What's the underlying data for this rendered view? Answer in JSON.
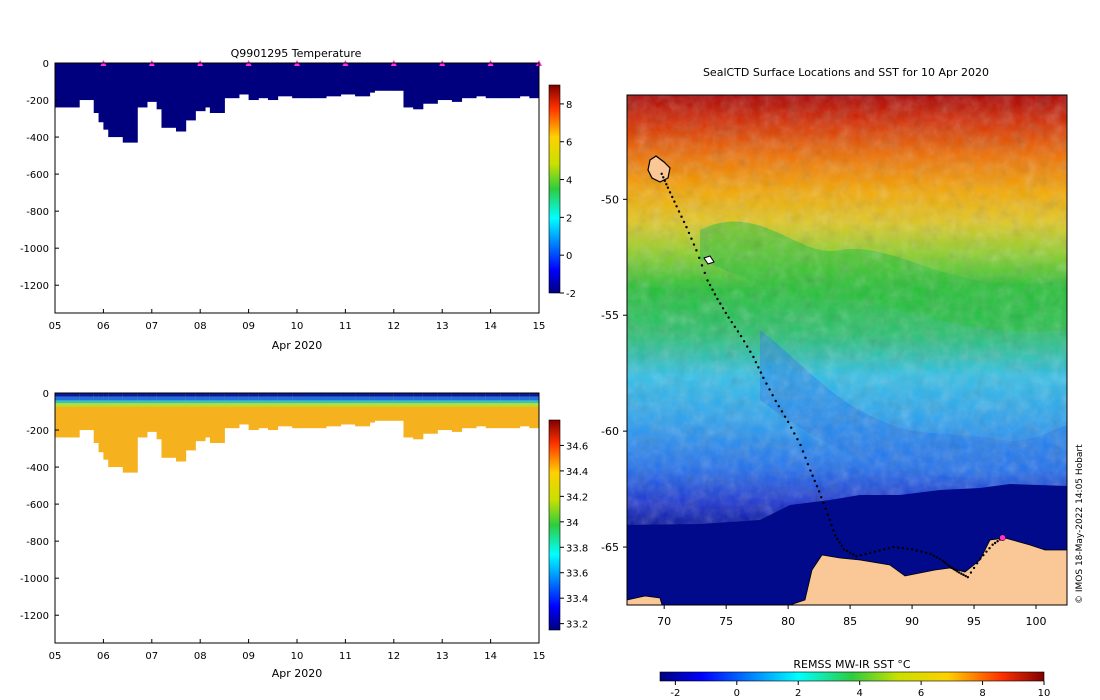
{
  "chart_data": [
    {
      "type": "heatmap",
      "id": "temperature-section",
      "title": "Q9901295  Temperature",
      "xlabel": "Apr 2020",
      "x_ticks": [
        "05",
        "06",
        "07",
        "08",
        "09",
        "10",
        "11",
        "12",
        "13",
        "14",
        "15"
      ],
      "xlim": [
        5,
        15
      ],
      "y_ticks": [
        "0",
        "-200",
        "-400",
        "-600",
        "-800",
        "-1000",
        "-1200"
      ],
      "y_tick_values": [
        0,
        -200,
        -400,
        -600,
        -800,
        -1000,
        -1200
      ],
      "ylim": [
        -1350,
        0
      ],
      "colorbar": {
        "ticks": [
          "8",
          "6",
          "4",
          "2",
          "0",
          "-2"
        ],
        "tick_values": [
          8,
          6,
          4,
          2,
          0,
          -2
        ],
        "range": [
          -2,
          9
        ]
      },
      "profile_times": [
        5.0,
        5.5,
        5.8,
        5.9,
        6.0,
        6.1,
        6.4,
        6.7,
        6.9,
        7.1,
        7.2,
        7.5,
        7.7,
        7.9,
        8.1,
        8.2,
        8.5,
        8.8,
        9.0,
        9.2,
        9.4,
        9.6,
        9.9,
        10.3,
        10.6,
        10.9,
        11.2,
        11.5,
        11.6,
        12.0,
        12.2,
        12.4,
        12.6,
        12.9,
        13.2,
        13.4,
        13.7,
        13.9,
        14.2,
        14.6,
        14.8
      ],
      "profile_depths": [
        240,
        200,
        270,
        320,
        360,
        400,
        430,
        240,
        210,
        250,
        350,
        370,
        310,
        260,
        240,
        270,
        190,
        170,
        200,
        190,
        200,
        180,
        190,
        190,
        180,
        170,
        180,
        160,
        150,
        150,
        240,
        250,
        220,
        200,
        210,
        190,
        180,
        190,
        190,
        180,
        190
      ],
      "temperature_range_observed": [
        -2,
        -1
      ],
      "profile_markers": [
        6,
        7,
        8,
        9,
        10,
        11,
        12,
        13,
        14,
        15
      ]
    },
    {
      "type": "heatmap",
      "id": "salinity-section",
      "title": "",
      "xlabel": "Apr 2020",
      "x_ticks": [
        "05",
        "06",
        "07",
        "08",
        "09",
        "10",
        "11",
        "12",
        "13",
        "14",
        "15"
      ],
      "xlim": [
        5,
        15
      ],
      "y_ticks": [
        "0",
        "-200",
        "-400",
        "-600",
        "-800",
        "-1000",
        "-1200"
      ],
      "y_tick_values": [
        0,
        -200,
        -400,
        -600,
        -800,
        -1000,
        -1200
      ],
      "ylim": [
        -1350,
        0
      ],
      "colorbar": {
        "ticks": [
          "34.6",
          "34.4",
          "34.2",
          "34",
          "33.8",
          "33.6",
          "33.4",
          "33.2"
        ],
        "tick_values": [
          34.6,
          34.4,
          34.2,
          34.0,
          33.8,
          33.6,
          33.4,
          33.2
        ],
        "range": [
          33.15,
          34.8
        ]
      },
      "salinity_layers": [
        {
          "from_depth": 0,
          "to_depth": 20,
          "salinity": 33.35
        },
        {
          "from_depth": 20,
          "to_depth": 40,
          "salinity": 33.6
        },
        {
          "from_depth": 40,
          "to_depth": 55,
          "salinity": 33.95
        },
        {
          "from_depth": 55,
          "to_depth": 75,
          "salinity": 34.25
        },
        {
          "from_depth": 75,
          "to_depth": 9999,
          "salinity": 34.32
        }
      ]
    },
    {
      "type": "heatmap",
      "id": "sst-map",
      "title": "SealCTD Surface Locations and SST for 10 Apr 2020",
      "xlim": [
        67,
        102.5
      ],
      "ylim": [
        -67.5,
        -45.5
      ],
      "x_ticks": [
        "70",
        "75",
        "80",
        "85",
        "90",
        "95",
        "100"
      ],
      "x_tick_values": [
        70,
        75,
        80,
        85,
        90,
        95,
        100
      ],
      "y_ticks": [
        "-50",
        "-55",
        "-60",
        "-65"
      ],
      "y_tick_values": [
        -50,
        -55,
        -60,
        -65
      ],
      "colorbar_label": "REMSS MW-IR SST °C",
      "colorbar_ticks": [
        "-2",
        "0",
        "2",
        "4",
        "6",
        "8",
        "10"
      ],
      "colorbar_tick_values": [
        -2,
        0,
        2,
        4,
        6,
        8,
        10
      ],
      "colorbar_range": [
        -2.5,
        10
      ],
      "track": [
        [
          69.8,
          -48.9
        ],
        [
          70.3,
          -49.5
        ],
        [
          71.0,
          -50.3
        ],
        [
          71.8,
          -51.2
        ],
        [
          72.6,
          -52.2
        ],
        [
          73.5,
          -53.5
        ],
        [
          74.3,
          -54.3
        ],
        [
          75.2,
          -55.1
        ],
        [
          76.2,
          -55.9
        ],
        [
          77.2,
          -56.8
        ],
        [
          78.0,
          -57.7
        ],
        [
          79.0,
          -58.7
        ],
        [
          80.0,
          -59.6
        ],
        [
          81.0,
          -60.6
        ],
        [
          81.8,
          -61.7
        ],
        [
          82.5,
          -62.6
        ],
        [
          83.2,
          -63.6
        ],
        [
          83.8,
          -64.5
        ],
        [
          84.5,
          -65.1
        ],
        [
          85.5,
          -65.4
        ],
        [
          87.0,
          -65.2
        ],
        [
          88.5,
          -65.0
        ],
        [
          90.0,
          -65.1
        ],
        [
          91.5,
          -65.3
        ],
        [
          92.5,
          -65.6
        ],
        [
          93.2,
          -65.9
        ],
        [
          93.8,
          -66.1
        ],
        [
          94.5,
          -66.3
        ],
        [
          95.5,
          -65.5
        ],
        [
          96.5,
          -64.9
        ],
        [
          97.3,
          -64.6
        ]
      ],
      "surface_marker": [
        97.3,
        -64.6
      ],
      "footer": "© IMOS 18-May-2022 14:05 Hobart"
    }
  ]
}
